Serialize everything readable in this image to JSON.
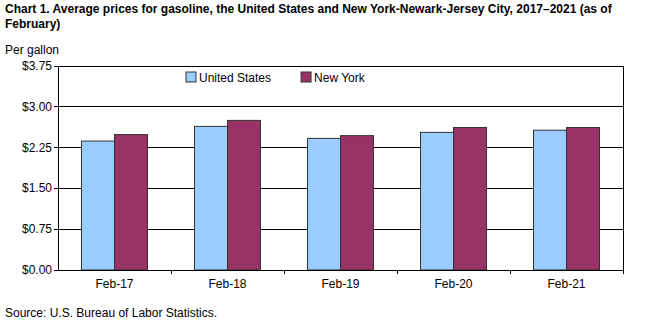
{
  "chart_data": {
    "type": "bar",
    "title": "Chart 1. Average prices for gasoline, the United States and New York-Newark-Jersey City, 2017–2021 (as of February)",
    "y_label": "Per gallon",
    "source": "Source: U.S. Bureau of Labor Statistics.",
    "categories": [
      "Feb-17",
      "Feb-18",
      "Feb-19",
      "Feb-20",
      "Feb-21"
    ],
    "series": [
      {
        "name": "United States",
        "color": "#99ccff",
        "values": [
          2.37,
          2.64,
          2.42,
          2.53,
          2.57
        ]
      },
      {
        "name": "New York",
        "color": "#993366",
        "values": [
          2.49,
          2.75,
          2.47,
          2.62,
          2.62
        ]
      }
    ],
    "ylim": [
      0,
      3.75
    ],
    "yticks": [
      {
        "value": 0,
        "label": "$0.00"
      },
      {
        "value": 0.75,
        "label": "$0.75"
      },
      {
        "value": 1.5,
        "label": "$1.50"
      },
      {
        "value": 2.25,
        "label": "$2.25"
      },
      {
        "value": 3,
        "label": "$3.00"
      },
      {
        "value": 3.75,
        "label": "$3.75"
      }
    ],
    "grid": true,
    "legend": "top"
  }
}
